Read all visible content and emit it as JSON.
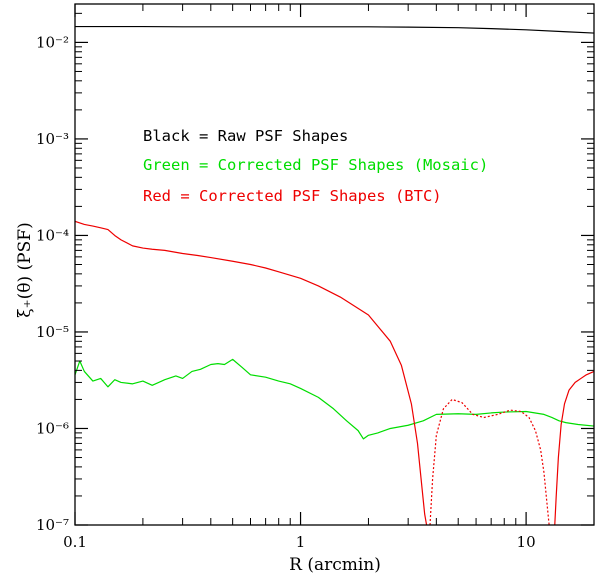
{
  "chart_data": {
    "type": "line",
    "xlabel": "R (arcmin)",
    "ylabel": "ξ₊(θ)  (PSF)",
    "x_scale": "log",
    "y_scale": "log",
    "xlim": [
      0.1,
      20
    ],
    "ylim": [
      1e-07,
      0.025
    ],
    "grid": false,
    "x_ticks": [
      {
        "value": 0.1,
        "label": "0.1"
      },
      {
        "value": 1,
        "label": "1"
      },
      {
        "value": 10,
        "label": "10"
      }
    ],
    "y_ticks": [
      {
        "value": 1e-07,
        "label": "10⁻⁷"
      },
      {
        "value": 1e-06,
        "label": "10⁻⁶"
      },
      {
        "value": 1e-05,
        "label": "10⁻⁵"
      },
      {
        "value": 0.0001,
        "label": "10⁻⁴"
      },
      {
        "value": 0.001,
        "label": "10⁻³"
      },
      {
        "value": 0.01,
        "label": "10⁻²"
      }
    ],
    "annotations": [
      {
        "text": "Black = Raw PSF Shapes",
        "color": "#000000"
      },
      {
        "text": "Green = Corrected PSF Shapes (Mosaic)",
        "color": "#00dd00"
      },
      {
        "text": "Red = Corrected PSF Shapes (BTC)",
        "color": "#ee0000"
      }
    ],
    "series": [
      {
        "color": "#000000",
        "style": "solid",
        "x": [
          0.1,
          0.2,
          0.3,
          0.5,
          0.7,
          1,
          2,
          3,
          5,
          7,
          10,
          15,
          20
        ],
        "y": [
          0.0146,
          0.0146,
          0.0145,
          0.0145,
          0.0145,
          0.0145,
          0.0145,
          0.0144,
          0.0142,
          0.0139,
          0.0135,
          0.0129,
          0.0125
        ]
      },
      {
        "color": "#00dd00",
        "style": "solid",
        "x": [
          0.1,
          0.105,
          0.11,
          0.12,
          0.13,
          0.14,
          0.15,
          0.16,
          0.18,
          0.2,
          0.22,
          0.25,
          0.28,
          0.3,
          0.33,
          0.36,
          0.4,
          0.43,
          0.46,
          0.5,
          0.55,
          0.6,
          0.7,
          0.8,
          0.9,
          1.0,
          1.2,
          1.4,
          1.6,
          1.8,
          1.9,
          2.0,
          2.2,
          2.5,
          3.0,
          3.5,
          4.0,
          5.0,
          6.0,
          7.0,
          8.0,
          10.0,
          12.0,
          13.0,
          14.0,
          15.0,
          17.0,
          20.0
        ],
        "y": [
          3.6e-06,
          5e-06,
          3.9e-06,
          3.1e-06,
          3.3e-06,
          2.7e-06,
          3.2e-06,
          3e-06,
          2.9e-06,
          3.1e-06,
          2.8e-06,
          3.2e-06,
          3.5e-06,
          3.3e-06,
          3.9e-06,
          4.1e-06,
          4.6e-06,
          4.7e-06,
          4.6e-06,
          5.2e-06,
          4.3e-06,
          3.6e-06,
          3.4e-06,
          3.1e-06,
          2.9e-06,
          2.6e-06,
          2.1e-06,
          1.6e-06,
          1.2e-06,
          9.5e-07,
          7.8e-07,
          8.5e-07,
          9e-07,
          1e-06,
          1.08e-06,
          1.2e-06,
          1.4e-06,
          1.42e-06,
          1.4e-06,
          1.45e-06,
          1.48e-06,
          1.5e-06,
          1.4e-06,
          1.3e-06,
          1.2e-06,
          1.15e-06,
          1.1e-06,
          1.06e-06
        ]
      },
      {
        "color": "#ee0000",
        "style": "solid",
        "x": [
          0.1,
          0.11,
          0.12,
          0.13,
          0.14,
          0.15,
          0.16,
          0.18,
          0.2,
          0.22,
          0.25,
          0.3,
          0.35,
          0.4,
          0.5,
          0.6,
          0.7,
          0.8,
          1.0,
          1.2,
          1.5,
          2.0,
          2.5,
          2.8,
          3.1,
          3.3,
          3.45,
          3.55,
          3.62
        ],
        "y": [
          0.00014,
          0.00013,
          0.000125,
          0.00012,
          0.000115,
          0.0001,
          9e-05,
          7.8e-05,
          7.4e-05,
          7.2e-05,
          7e-05,
          6.5e-05,
          6.2e-05,
          5.9e-05,
          5.4e-05,
          5e-05,
          4.6e-05,
          4.2e-05,
          3.6e-05,
          3e-05,
          2.3e-05,
          1.5e-05,
          8e-06,
          4.5e-06,
          1.8e-06,
          7e-07,
          2.5e-07,
          1.3e-07,
          1e-07
        ]
      },
      {
        "color": "#ee0000",
        "style": "dotted",
        "x": [
          3.75,
          3.85,
          4.0,
          4.3,
          4.7,
          5.2,
          5.8,
          6.5,
          7.5,
          8.5,
          9.5,
          10.3,
          11.0,
          11.6,
          12.0,
          12.4,
          12.65
        ],
        "y": [
          1e-07,
          3e-07,
          8.5e-07,
          1.6e-06,
          2e-06,
          1.85e-06,
          1.4e-06,
          1.3e-06,
          1.4e-06,
          1.55e-06,
          1.5e-06,
          1.3e-06,
          9.5e-07,
          6e-07,
          3.5e-07,
          1.6e-07,
          1e-07
        ]
      },
      {
        "color": "#ee0000",
        "style": "solid",
        "x": [
          13.4,
          13.6,
          13.9,
          14.3,
          14.8,
          15.5,
          16.5,
          17.5,
          18.5,
          20.0
        ],
        "y": [
          1e-07,
          2e-07,
          5e-07,
          1.1e-06,
          1.8e-06,
          2.5e-06,
          3e-06,
          3.3e-06,
          3.6e-06,
          3.9e-06
        ]
      }
    ]
  }
}
